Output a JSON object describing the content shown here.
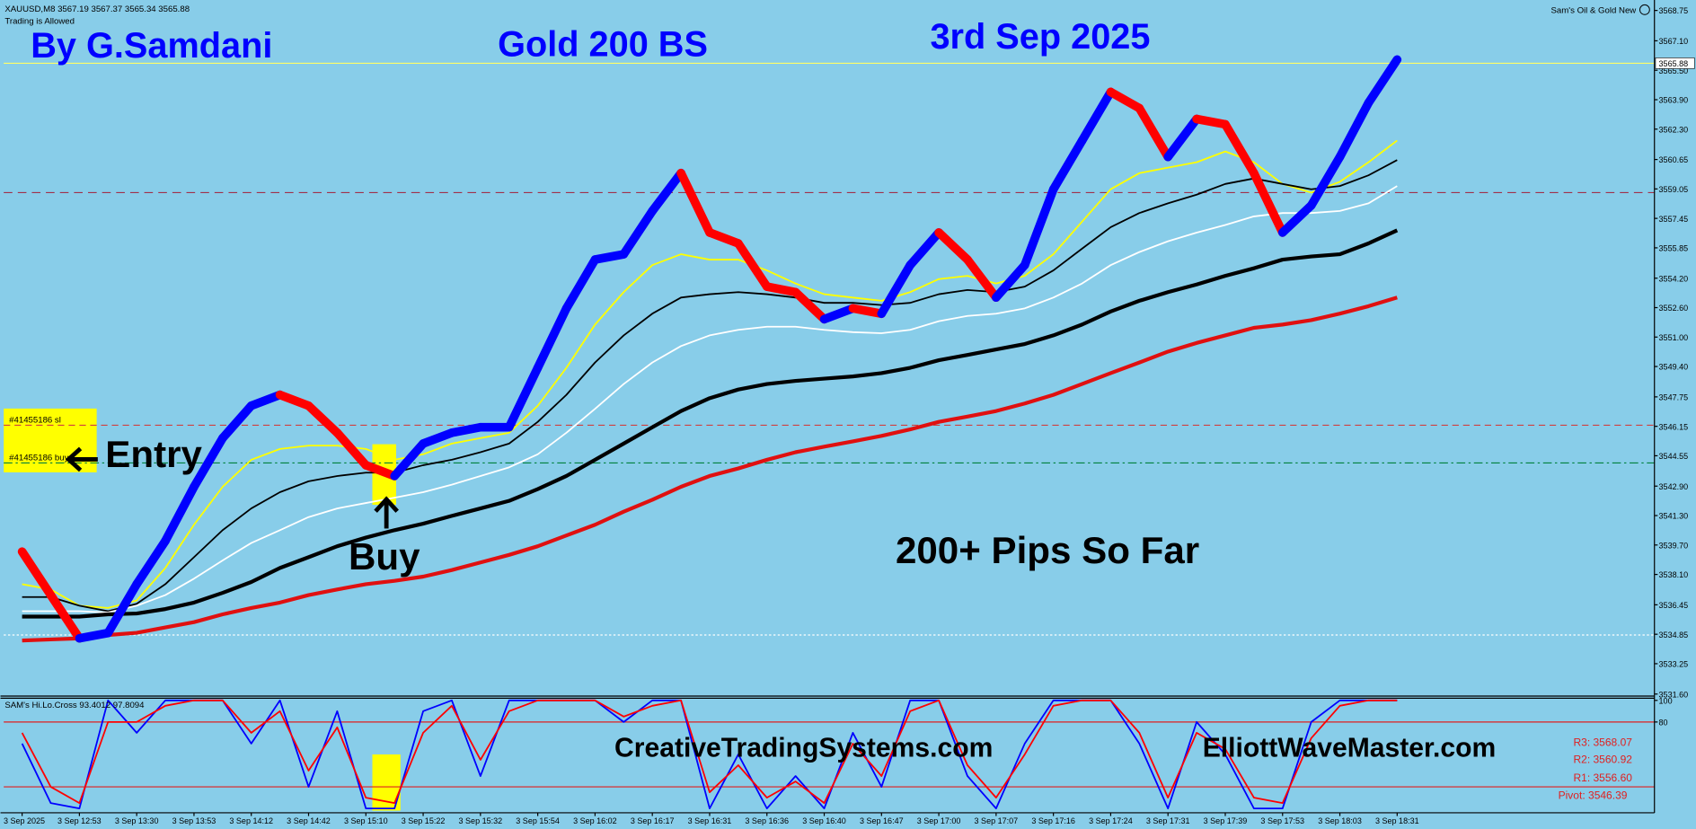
{
  "chart_data": [
    {
      "type": "line",
      "symbol_info": "XAUUSD,M8  3567.19 3567.37 3565.34 3565.88",
      "trading_status": "Trading is Allowed",
      "expert_name": "Sam's Oil & Gold New",
      "author": "By G.Samdani",
      "title": "Gold 200 BS",
      "date": "3rd Sep 2025",
      "annotations": {
        "entry": "Entry",
        "buy": "Buy",
        "result": "200+ Pips So Far",
        "site_1": "CreativeTradingSystems.com",
        "site_2": "ElliottWaveMaster.com",
        "order_sl": "#41455186 sl",
        "order_buy": "#41455186 buy"
      },
      "pivots": [
        "R3: 3568.07",
        "R2: 3560.92",
        "R1: 3556.60",
        "Pivot: 3546.39"
      ],
      "categories": [
        "3 Sep 2025",
        null,
        "3 Sep 12:53",
        null,
        "3 Sep 13:30",
        null,
        "3 Sep 13:53",
        null,
        "3 Sep 14:12",
        null,
        "3 Sep 14:42",
        null,
        "3 Sep 15:10",
        null,
        "3 Sep 15:22",
        null,
        "3 Sep 15:32",
        null,
        "3 Sep 15:54",
        null,
        "3 Sep 16:02",
        null,
        "3 Sep 16:17",
        null,
        "3 Sep 16:31",
        null,
        "3 Sep 16:36",
        null,
        "3 Sep 16:40",
        null,
        "3 Sep 16:47",
        null,
        "3 Sep 17:00",
        null,
        "3 Sep 17:07",
        null,
        "3 Sep 17:16",
        null,
        "3 Sep 17:24",
        null,
        "3 Sep 17:31",
        null,
        "3 Sep 17:39",
        null,
        "3 Sep 17:53",
        null,
        "3 Sep 18:03",
        null,
        "3 Sep 18:31"
      ],
      "ylim": [
        3531.55,
        3569.2
      ],
      "yticks": [
        3568.75,
        {
          "value": 3567.1,
          "label": "3567.10"
        },
        {
          "value": 3565.5,
          "label": "3565.50"
        },
        {
          "value": 3563.9,
          "label": "3563.90"
        },
        {
          "value": 3562.3,
          "label": "3562.30"
        },
        3560.65,
        3559.05,
        3557.45,
        3555.85,
        {
          "value": 3554.2,
          "label": "3554.20"
        },
        {
          "value": 3552.6,
          "label": "3552.60"
        },
        {
          "value": 3551,
          "label": "3551.00"
        },
        {
          "value": 3549.4,
          "label": "3549.40"
        },
        3547.75,
        3546.15,
        3544.55,
        {
          "value": 3542.9,
          "label": "3542.90"
        },
        {
          "value": 3541.3,
          "label": "3541.30"
        },
        {
          "value": 3539.7,
          "label": "3539.70"
        },
        {
          "value": 3538.1,
          "label": "3538.10"
        },
        3536.45,
        3534.85,
        3533.25,
        {
          "value": 3531.6,
          "label": "3531.60"
        }
      ],
      "hlines": [
        {
          "value": 3565.88,
          "label": "3565.88",
          "color": "#ffff66",
          "dash": "none"
        },
        {
          "value": 3558.85,
          "color": "#a0304a",
          "dash": "8,5"
        },
        {
          "value": 3546.21,
          "color": "#d04040",
          "dash": "6,4"
        },
        {
          "value": 3544.16,
          "color": "#00803c",
          "dash": "8,3,2,3"
        },
        {
          "value": 3534.81,
          "color": "#ffffff",
          "dash": "2,2"
        }
      ],
      "series": [
        {
          "color_up": "#0000ff",
          "color_down": "#ff0000",
          "width": 8,
          "values": [
            3539.34,
            3536.98,
            3534.63,
            3534.92,
            3537.57,
            3539.92,
            3542.86,
            3545.51,
            3547.27,
            3547.86,
            3547.27,
            3545.8,
            3544.04,
            3543.45,
            3545.21,
            3545.8,
            3546.1,
            3546.1,
            3549.33,
            3552.56,
            3555.21,
            3555.5,
            3557.85,
            3559.91,
            3556.68,
            3556.09,
            3553.74,
            3553.44,
            3551.97,
            3552.56,
            3552.27,
            3554.91,
            3556.68,
            3555.21,
            3553.15,
            3554.91,
            3559.03,
            3561.67,
            3564.32,
            3563.44,
            3560.79,
            3562.85,
            3562.56,
            3559.91,
            3556.68,
            3558.15,
            3560.79,
            3563.73,
            3566.08
          ]
        },
        {
          "color": "#ffff00",
          "width": 1.5,
          "values": [
            3537.57,
            3537.28,
            3536.4,
            3536.28,
            3536.69,
            3538.45,
            3540.8,
            3542.86,
            3544.33,
            3544.92,
            3545.1,
            3545.1,
            3544.92,
            3544.33,
            3544.63,
            3545.21,
            3545.51,
            3545.8,
            3547.27,
            3549.33,
            3551.68,
            3553.44,
            3554.91,
            3555.5,
            3555.21,
            3555.21,
            3554.62,
            3553.91,
            3553.33,
            3553.15,
            3552.97,
            3553.44,
            3554.15,
            3554.33,
            3553.91,
            3554.33,
            3555.5,
            3557.27,
            3559.03,
            3559.91,
            3560.21,
            3560.5,
            3561.09,
            3560.5,
            3559.32,
            3558.85,
            3559.44,
            3560.5,
            3561.68
          ]
        },
        {
          "color": "#000000",
          "width": 1.5,
          "values": [
            3536.87,
            3536.87,
            3536.4,
            3536.1,
            3536.51,
            3537.57,
            3539.04,
            3540.51,
            3541.69,
            3542.57,
            3543.16,
            3543.45,
            3543.63,
            3543.63,
            3544.04,
            3544.33,
            3544.74,
            3545.21,
            3546.39,
            3547.86,
            3549.62,
            3551.09,
            3552.27,
            3553.15,
            3553.33,
            3553.44,
            3553.33,
            3553.15,
            3552.86,
            3552.86,
            3552.74,
            3552.86,
            3553.33,
            3553.56,
            3553.44,
            3553.74,
            3554.62,
            3555.8,
            3556.97,
            3557.74,
            3558.27,
            3558.74,
            3559.32,
            3559.62,
            3559.32,
            3559.03,
            3559.21,
            3559.79,
            3560.62
          ]
        },
        {
          "color": "#ffffff",
          "width": 1.5,
          "values": [
            3536.1,
            3536.1,
            3536.1,
            3536.04,
            3536.4,
            3536.98,
            3537.87,
            3538.86,
            3539.81,
            3540.51,
            3541.22,
            3541.69,
            3541.98,
            3542.27,
            3542.57,
            3542.98,
            3543.45,
            3543.92,
            3544.63,
            3545.8,
            3547.1,
            3548.45,
            3549.62,
            3550.51,
            3551.09,
            3551.39,
            3551.56,
            3551.56,
            3551.39,
            3551.27,
            3551.21,
            3551.39,
            3551.86,
            3552.15,
            3552.27,
            3552.56,
            3553.15,
            3553.91,
            3554.91,
            3555.62,
            3556.21,
            3556.68,
            3557.09,
            3557.56,
            3557.74,
            3557.74,
            3557.85,
            3558.27,
            3559.21
          ]
        },
        {
          "color": "#000000",
          "width": 3.5,
          "values": [
            3535.81,
            3535.81,
            3535.81,
            3535.93,
            3535.98,
            3536.22,
            3536.57,
            3537.1,
            3537.69,
            3538.45,
            3539.04,
            3539.63,
            3540.1,
            3540.51,
            3540.86,
            3541.28,
            3541.69,
            3542.1,
            3542.74,
            3543.45,
            3544.33,
            3545.21,
            3546.1,
            3546.98,
            3547.68,
            3548.15,
            3548.45,
            3548.62,
            3548.74,
            3548.86,
            3549.04,
            3549.33,
            3549.74,
            3550.03,
            3550.33,
            3550.62,
            3551.09,
            3551.68,
            3552.39,
            3552.97,
            3553.44,
            3553.86,
            3554.33,
            3554.74,
            3555.21,
            3555.38,
            3555.5,
            3556.09,
            3556.8
          ]
        },
        {
          "color": "#e01010",
          "width": 3.5,
          "values": [
            3534.51,
            3534.57,
            3534.63,
            3534.81,
            3534.93,
            3535.22,
            3535.51,
            3535.93,
            3536.28,
            3536.57,
            3536.98,
            3537.28,
            3537.57,
            3537.75,
            3537.98,
            3538.34,
            3538.75,
            3539.16,
            3539.63,
            3540.22,
            3540.8,
            3541.51,
            3542.16,
            3542.86,
            3543.45,
            3543.86,
            3544.33,
            3544.74,
            3545.04,
            3545.33,
            3545.63,
            3545.98,
            3546.39,
            3546.68,
            3546.98,
            3547.39,
            3547.86,
            3548.45,
            3549.04,
            3549.62,
            3550.21,
            3550.68,
            3551.09,
            3551.5,
            3551.68,
            3551.92,
            3552.27,
            3552.68,
            3553.15
          ]
        }
      ]
    },
    {
      "type": "line",
      "title": "SAM's Hi.Lo.Cross 93.4012 97.8094",
      "ylim": [
        0,
        100
      ],
      "yticks": [
        100,
        80
      ],
      "levels": [
        80,
        20
      ],
      "level_color": "#e02020",
      "series": [
        {
          "color": "#0000ff",
          "width": 1.5,
          "values": [
            60,
            5,
            0,
            100,
            70,
            100,
            100,
            100,
            60,
            100,
            20,
            90,
            0,
            0,
            90,
            100,
            30,
            100,
            100,
            100,
            100,
            80,
            100,
            100,
            0,
            50,
            0,
            30,
            0,
            70,
            20,
            100,
            100,
            30,
            0,
            60,
            100,
            100,
            100,
            60,
            0,
            80,
            50,
            0,
            0,
            80,
            100,
            100,
            100
          ]
        },
        {
          "color": "#ff0000",
          "width": 1.5,
          "values": [
            70,
            20,
            5,
            80,
            80,
            95,
            100,
            100,
            70,
            90,
            35,
            75,
            10,
            5,
            70,
            95,
            45,
            90,
            100,
            100,
            100,
            85,
            95,
            100,
            15,
            40,
            10,
            25,
            5,
            60,
            30,
            90,
            100,
            40,
            10,
            50,
            95,
            100,
            100,
            70,
            10,
            70,
            55,
            10,
            5,
            65,
            95,
            100,
            100
          ]
        }
      ]
    }
  ]
}
